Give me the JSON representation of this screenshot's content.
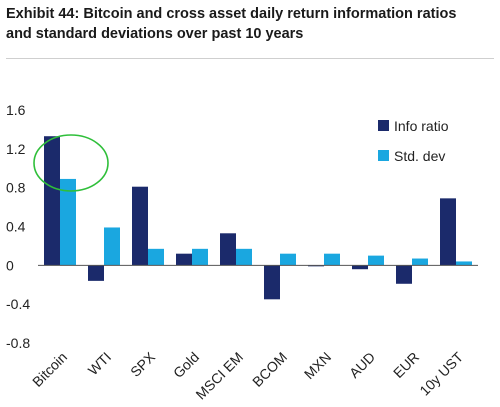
{
  "title": "Exhibit 44: Bitcoin and cross asset daily return information ratios and standard deviations over past 10 years",
  "chart_data": {
    "type": "bar",
    "categories": [
      "Bitcoin",
      "WTI",
      "SPX",
      "Gold",
      "MSCI EM",
      "BCOM",
      "MXN",
      "AUD",
      "EUR",
      "10y UST"
    ],
    "series": [
      {
        "name": "Info ratio",
        "color": "#1b2a6b",
        "values": [
          1.33,
          -0.16,
          0.81,
          0.12,
          0.33,
          -0.35,
          -0.01,
          -0.04,
          -0.19,
          0.69
        ]
      },
      {
        "name": "Std. dev",
        "color": "#1aa7e0",
        "values": [
          0.89,
          0.39,
          0.17,
          0.17,
          0.17,
          0.12,
          0.12,
          0.1,
          0.07,
          0.04
        ]
      }
    ],
    "y_ticks": [
      "1.6",
      "1.2",
      "0.8",
      "0.4",
      "0",
      "-0.4",
      "-0.8"
    ],
    "ylim": [
      -0.8,
      1.6
    ],
    "grid": false,
    "legend": "top-right",
    "annotation": "green circle highlighting Bitcoin bars"
  }
}
